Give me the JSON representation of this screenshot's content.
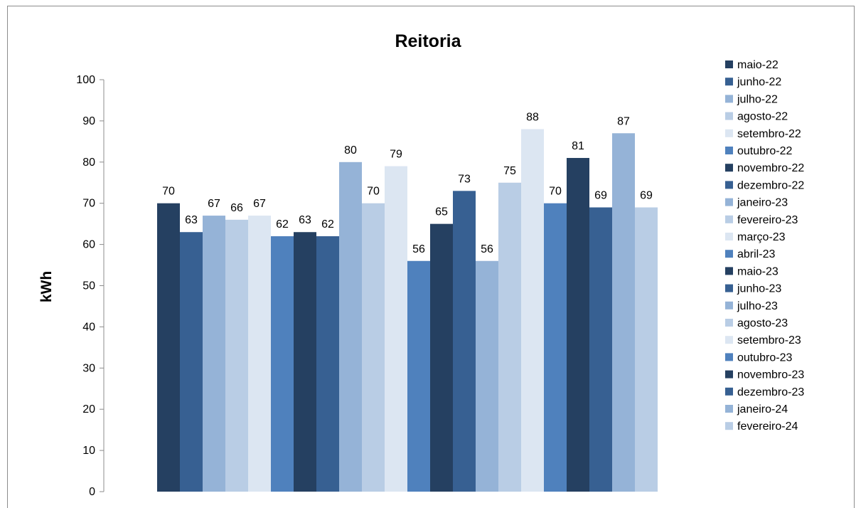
{
  "chart_data": {
    "type": "bar",
    "title": "Reitoria",
    "ylabel": "kWh",
    "xlabel": "",
    "ylim": [
      0,
      100
    ],
    "yticks": [
      0,
      10,
      20,
      30,
      40,
      50,
      60,
      70,
      80,
      90,
      100
    ],
    "legend_position": "right",
    "grid": false,
    "series": [
      {
        "name": "maio-22",
        "value": 70,
        "color": "#254061"
      },
      {
        "name": "junho-22",
        "value": 63,
        "color": "#376092"
      },
      {
        "name": "julho-22",
        "value": 67,
        "color": "#95b3d7"
      },
      {
        "name": "agosto-22",
        "value": 66,
        "color": "#b9cde5"
      },
      {
        "name": "setembro-22",
        "value": 67,
        "color": "#dce6f2"
      },
      {
        "name": "outubro-22",
        "value": 62,
        "color": "#4f81bd"
      },
      {
        "name": "novembro-22",
        "value": 63,
        "color": "#254061"
      },
      {
        "name": "dezembro-22",
        "value": 62,
        "color": "#376092"
      },
      {
        "name": "janeiro-23",
        "value": 80,
        "color": "#95b3d7"
      },
      {
        "name": "fevereiro-23",
        "value": 70,
        "color": "#b9cde5"
      },
      {
        "name": "março-23",
        "value": 79,
        "color": "#dce6f2"
      },
      {
        "name": "abril-23",
        "value": 56,
        "color": "#4f81bd"
      },
      {
        "name": "maio-23",
        "value": 65,
        "color": "#254061"
      },
      {
        "name": "junho-23",
        "value": 73,
        "color": "#376092"
      },
      {
        "name": "julho-23",
        "value": 56,
        "color": "#95b3d7"
      },
      {
        "name": "agosto-23",
        "value": 75,
        "color": "#b9cde5"
      },
      {
        "name": "setembro-23",
        "value": 88,
        "color": "#dce6f2"
      },
      {
        "name": "outubro-23",
        "value": 70,
        "color": "#4f81bd"
      },
      {
        "name": "novembro-23",
        "value": 81,
        "color": "#254061"
      },
      {
        "name": "dezembro-23",
        "value": 69,
        "color": "#376092"
      },
      {
        "name": "janeiro-24",
        "value": 87,
        "color": "#95b3d7"
      },
      {
        "name": "fevereiro-24",
        "value": 69,
        "color": "#b9cde5"
      }
    ]
  }
}
